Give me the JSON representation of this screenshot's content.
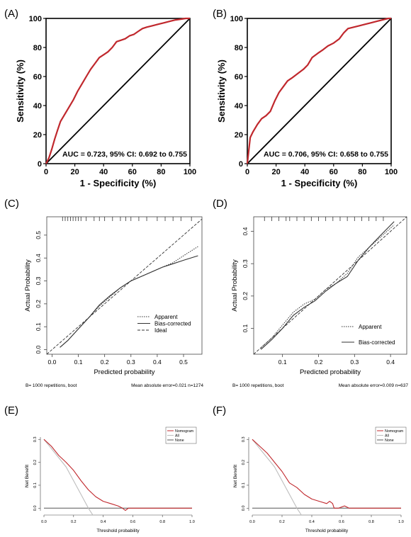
{
  "colors": {
    "roc": "#c0282d",
    "diag": "#000000",
    "nomogram": "#c0282d",
    "all": "#bdbdbd",
    "none": "#555555"
  },
  "chart_data": [
    {
      "panel": "(A)",
      "type": "line",
      "xlabel": "1 - Specificity (%)",
      "ylabel": "Sensitivity (%)",
      "xlim": [
        0,
        100
      ],
      "ylim": [
        0,
        100
      ],
      "xticks": [
        "0",
        "20",
        "40",
        "60",
        "80",
        "100"
      ],
      "yticks": [
        "0",
        "20",
        "40",
        "60",
        "80",
        "100"
      ],
      "annotation": "AUC = 0.723, 95% CI: 0.692 to 0.755",
      "series": [
        {
          "role": "roc",
          "x": [
            0,
            2,
            4,
            6,
            8,
            10,
            13,
            16,
            19,
            22,
            25,
            28,
            31,
            34,
            37,
            40,
            43,
            46,
            49,
            52,
            55,
            58,
            61,
            64,
            67,
            70,
            74,
            78,
            82,
            86,
            90,
            94,
            97,
            100
          ],
          "y": [
            0,
            4,
            10,
            17,
            23,
            29,
            34,
            39,
            44,
            50,
            55,
            60,
            65,
            69,
            73,
            75,
            77,
            80,
            84,
            85,
            86,
            88,
            89,
            91,
            93,
            94,
            95,
            96,
            97,
            98,
            99,
            99.5,
            100,
            100
          ]
        },
        {
          "role": "diagonal",
          "x": [
            0,
            100
          ],
          "y": [
            0,
            100
          ]
        }
      ]
    },
    {
      "panel": "(B)",
      "type": "line",
      "xlabel": "1 - Specificity (%)",
      "ylabel": "Sensitivity (%)",
      "xlim": [
        0,
        100
      ],
      "ylim": [
        0,
        100
      ],
      "xticks": [
        "0",
        "20",
        "40",
        "60",
        "80",
        "100"
      ],
      "yticks": [
        "0",
        "20",
        "40",
        "60",
        "80",
        "100"
      ],
      "annotation": "AUC = 0.706, 95% CI: 0.658 to 0.755",
      "series": [
        {
          "role": "roc",
          "x": [
            0,
            2,
            4,
            7,
            10,
            13,
            16,
            19,
            22,
            25,
            28,
            31,
            35,
            39,
            42,
            45,
            49,
            52,
            56,
            60,
            64,
            67,
            70,
            74,
            78,
            82,
            86,
            90,
            94,
            98,
            100
          ],
          "y": [
            0,
            18,
            22,
            27,
            31,
            33,
            36,
            43,
            49,
            53,
            57,
            59,
            62,
            65,
            68,
            73,
            76,
            78,
            81,
            83,
            86,
            90,
            93,
            94,
            95,
            96,
            97,
            98,
            99,
            100,
            100
          ]
        },
        {
          "role": "diagonal",
          "x": [
            0,
            100
          ],
          "y": [
            0,
            100
          ]
        }
      ]
    },
    {
      "panel": "(C)",
      "type": "line",
      "xlabel": "Predicted probability",
      "ylabel": "Actual Probability",
      "xlim": [
        -0.02,
        0.57
      ],
      "ylim": [
        -0.02,
        0.58
      ],
      "xticks": [
        "0.0",
        "0.1",
        "0.2",
        "0.3",
        "0.4",
        "0.5"
      ],
      "yticks": [
        "0.0",
        "0.1",
        "0.2",
        "0.3",
        "0.4",
        "0.5"
      ],
      "legend": [
        "Apparent",
        "Bias-corrected",
        "Ideal"
      ],
      "footer_left": "B= 1000 repetitions, boot",
      "footer_right": "Mean absolute error=0.021 n=1274",
      "rug": [
        0.04,
        0.05,
        0.06,
        0.07,
        0.08,
        0.09,
        0.1,
        0.11,
        0.13,
        0.16,
        0.18,
        0.2,
        0.23,
        0.26,
        0.28,
        0.3,
        0.33,
        0.36,
        0.4,
        0.43,
        0.46,
        0.49,
        0.53
      ],
      "series": [
        {
          "name": "Apparent",
          "x": [
            0.03,
            0.06,
            0.1,
            0.14,
            0.18,
            0.22,
            0.26,
            0.3,
            0.34,
            0.38,
            0.42,
            0.46,
            0.5,
            0.555
          ],
          "y": [
            0.01,
            0.04,
            0.09,
            0.14,
            0.19,
            0.23,
            0.27,
            0.3,
            0.32,
            0.34,
            0.36,
            0.38,
            0.41,
            0.45
          ]
        },
        {
          "name": "Bias-corrected",
          "x": [
            0.03,
            0.06,
            0.1,
            0.14,
            0.18,
            0.22,
            0.26,
            0.3,
            0.34,
            0.38,
            0.42,
            0.46,
            0.5,
            0.555
          ],
          "y": [
            0.01,
            0.04,
            0.09,
            0.14,
            0.195,
            0.235,
            0.27,
            0.3,
            0.32,
            0.34,
            0.36,
            0.375,
            0.39,
            0.41
          ]
        },
        {
          "name": "Ideal",
          "x": [
            -0.02,
            0.57
          ],
          "y": [
            -0.02,
            0.57
          ]
        }
      ]
    },
    {
      "panel": "(D)",
      "type": "line",
      "xlabel": "Predicted probability",
      "ylabel": "Actual Probability",
      "xlim": [
        0.02,
        0.445
      ],
      "ylim": [
        0.02,
        0.445
      ],
      "xticks": [
        "0.1",
        "0.2",
        "0.3",
        "0.4"
      ],
      "yticks": [
        "0.1",
        "0.2",
        "0.3",
        "0.4"
      ],
      "legend": [
        "Apparent",
        "Bias-corrected"
      ],
      "footer_left": "B= 1000 repetitions, boot",
      "footer_right": "Mean absolute error=0.009 n=637",
      "rug": [
        0.05,
        0.07,
        0.09,
        0.11,
        0.12,
        0.14,
        0.16,
        0.18,
        0.2,
        0.22,
        0.24,
        0.26,
        0.28,
        0.3,
        0.32,
        0.34,
        0.36,
        0.38
      ],
      "series": [
        {
          "name": "Apparent",
          "x": [
            0.04,
            0.07,
            0.1,
            0.13,
            0.16,
            0.19,
            0.22,
            0.25,
            0.28,
            0.31,
            0.34,
            0.37,
            0.41
          ],
          "y": [
            0.04,
            0.07,
            0.11,
            0.15,
            0.175,
            0.19,
            0.22,
            0.24,
            0.27,
            0.32,
            0.35,
            0.38,
            0.42
          ]
        },
        {
          "name": "Bias-corrected",
          "x": [
            0.04,
            0.07,
            0.1,
            0.13,
            0.16,
            0.19,
            0.22,
            0.25,
            0.28,
            0.31,
            0.34,
            0.37,
            0.41
          ],
          "y": [
            0.035,
            0.065,
            0.1,
            0.14,
            0.165,
            0.185,
            0.215,
            0.24,
            0.26,
            0.31,
            0.35,
            0.385,
            0.43
          ]
        },
        {
          "name": "Ideal",
          "x": [
            0.02,
            0.445
          ],
          "y": [
            0.02,
            0.445
          ]
        }
      ]
    },
    {
      "panel": "(E)",
      "type": "line",
      "xlabel": "Threshold probability",
      "ylabel": "Net Benefit",
      "xlim": [
        0,
        1
      ],
      "ylim": [
        -0.03,
        0.31
      ],
      "xticks": [
        "0.0",
        "0.2",
        "0.4",
        "0.6",
        "0.8",
        "1.0"
      ],
      "yticks": [
        "0.0",
        "0.1",
        "0.2",
        "0.3"
      ],
      "legend": [
        "Nomogram",
        "All",
        "None"
      ],
      "series": [
        {
          "name": "Nomogram",
          "x": [
            0,
            0.05,
            0.1,
            0.15,
            0.2,
            0.25,
            0.3,
            0.35,
            0.4,
            0.45,
            0.5,
            0.53,
            0.55,
            0.57,
            0.6,
            1.0
          ],
          "y": [
            0.3,
            0.27,
            0.23,
            0.2,
            0.165,
            0.12,
            0.08,
            0.05,
            0.03,
            0.02,
            0.01,
            0.0,
            -0.01,
            0.0,
            0.0,
            0.0
          ]
        },
        {
          "name": "All",
          "x": [
            0,
            0.05,
            0.1,
            0.15,
            0.2,
            0.25,
            0.3,
            0.33
          ],
          "y": [
            0.3,
            0.26,
            0.22,
            0.18,
            0.12,
            0.06,
            0.0,
            -0.03
          ]
        },
        {
          "name": "None",
          "x": [
            0,
            1
          ],
          "y": [
            0,
            0
          ]
        }
      ]
    },
    {
      "panel": "(F)",
      "type": "line",
      "xlabel": "Threshold probability",
      "ylabel": "Net Benefit",
      "xlim": [
        0,
        1
      ],
      "ylim": [
        -0.03,
        0.31
      ],
      "xticks": [
        "0.0",
        "0.2",
        "0.4",
        "0.6",
        "0.8",
        "1.0"
      ],
      "yticks": [
        "0.0",
        "0.1",
        "0.2",
        "0.3"
      ],
      "legend": [
        "Nomogram",
        "All",
        "None"
      ],
      "series": [
        {
          "name": "Nomogram",
          "x": [
            0,
            0.05,
            0.1,
            0.15,
            0.2,
            0.25,
            0.3,
            0.35,
            0.4,
            0.45,
            0.5,
            0.52,
            0.54,
            0.55,
            0.58,
            0.62,
            0.65,
            1.0
          ],
          "y": [
            0.3,
            0.27,
            0.24,
            0.2,
            0.16,
            0.11,
            0.09,
            0.06,
            0.04,
            0.03,
            0.02,
            0.03,
            0.02,
            0.0,
            0.0,
            0.01,
            0.0,
            0.0
          ]
        },
        {
          "name": "All",
          "x": [
            0,
            0.05,
            0.1,
            0.15,
            0.2,
            0.25,
            0.3,
            0.33
          ],
          "y": [
            0.3,
            0.26,
            0.22,
            0.18,
            0.12,
            0.06,
            0.0,
            -0.03
          ]
        },
        {
          "name": "None",
          "x": [
            0,
            1
          ],
          "y": [
            0,
            0
          ]
        }
      ]
    }
  ]
}
